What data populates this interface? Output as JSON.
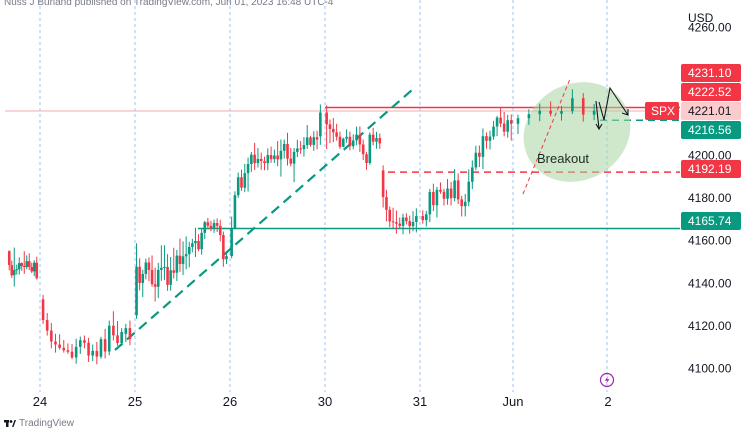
{
  "publisher_text": "Nuss J Burland published on TradingView.com, Jun 01, 2023 16:48 UTC-4",
  "footer_logo_text": "TradingView",
  "chart_data": {
    "type": "candlestick",
    "symbol": "SPX",
    "currency_label": "USD",
    "y_ticks": [
      4100,
      4120,
      4140,
      4160,
      4180,
      4200,
      4260
    ],
    "y_tick_labels": [
      "4100.00",
      "4120.00",
      "4140.00",
      "4160.00",
      "4180.00",
      "4200.00",
      "4260.00"
    ],
    "ylim": [
      4089,
      4273
    ],
    "x_labels": [
      "24",
      "25",
      "26",
      "30",
      "31",
      "Jun",
      "2"
    ],
    "price_badges": [
      {
        "label": "4231.10",
        "value": 4231.1,
        "style": "red"
      },
      {
        "label": "4222.52",
        "value": 4222.52,
        "style": "red"
      },
      {
        "label": "4221.01",
        "value": 4221.01,
        "style": "pink",
        "symbol": "SPX"
      },
      {
        "label": "4216.56",
        "value": 4216.56,
        "style": "green"
      },
      {
        "label": "4192.19",
        "value": 4192.19,
        "style": "red"
      },
      {
        "label": "4165.74",
        "value": 4165.74,
        "style": "green"
      }
    ],
    "horizontal_levels": [
      {
        "value": 4222.52,
        "style": "solid",
        "color": "#f23645"
      },
      {
        "value": 4192.19,
        "style": "dashed",
        "color": "#f23645"
      },
      {
        "value": 4216.56,
        "style": "dashed",
        "color": "#089981"
      },
      {
        "value": 4165.74,
        "style": "solid",
        "color": "#089981"
      }
    ],
    "trendline": {
      "style": "dashed",
      "color": "#089981"
    },
    "annotation": "Breakout",
    "candles": [
      [
        4155.1,
        4155.5,
        4146.1,
        4148.6
      ],
      [
        4148.6,
        4150.7,
        4142.6,
        4143.8
      ],
      [
        4143.8,
        4156.8,
        4138.5,
        4146.3
      ],
      [
        4146.3,
        4148.8,
        4144.1,
        4146.6
      ],
      [
        4146.6,
        4152.2,
        4144.1,
        4149.5
      ],
      [
        4149.5,
        4149.9,
        4145.9,
        4148.1
      ],
      [
        4148.1,
        4155.1,
        4144.4,
        4147.7
      ],
      [
        4147.7,
        4153.1,
        4146.6,
        4150.4
      ],
      [
        4150.4,
        4154.1,
        4146.3,
        4147.7
      ],
      [
        4147.7,
        4149.7,
        4144.8,
        4145.6
      ],
      [
        4145.6,
        4150.9,
        4143.4,
        4149.7
      ],
      [
        4149.7,
        4152.5,
        4141.8,
        4142.4
      ],
      [
        4132.5,
        4134.6,
        4121.0,
        4122.8
      ],
      [
        4122.8,
        4126.1,
        4115.5,
        4117.8
      ],
      [
        4117.8,
        4121.4,
        4109.5,
        4112.7
      ],
      [
        4112.7,
        4116.3,
        4107.5,
        4111.3
      ],
      [
        4111.3,
        4116.1,
        4108.9,
        4109.7
      ],
      [
        4109.7,
        4113.4,
        4107.5,
        4108.6
      ],
      [
        4108.6,
        4111.8,
        4106.9,
        4107.9
      ],
      [
        4107.9,
        4111.5,
        4104.4,
        4105.2
      ],
      [
        4105.2,
        4114.0,
        4102.3,
        4110.2
      ],
      [
        4110.2,
        4115.0,
        4106.9,
        4113.3
      ],
      [
        4113.3,
        4115.5,
        4109.5,
        4112.1
      ],
      [
        4112.1,
        4114.4,
        4103.1,
        4106.1
      ],
      [
        4106.1,
        4111.3,
        4103.5,
        4108.3
      ],
      [
        4108.3,
        4112.5,
        4102.0,
        4105.6
      ],
      [
        4105.6,
        4114.9,
        4104.6,
        4113.8
      ],
      [
        4113.8,
        4118.6,
        4104.8,
        4108.0
      ],
      [
        4108.0,
        4122.5,
        4106.2,
        4120.1
      ],
      [
        4120.1,
        4126.9,
        4113.2,
        4115.6
      ],
      [
        4115.6,
        4122.3,
        4110.7,
        4112.0
      ],
      [
        4112.0,
        4119.0,
        4110.6,
        4117.2
      ],
      [
        4116.3,
        4121.0,
        4112.5,
        4119.0
      ],
      [
        4119.0,
        4122.5,
        4111.0,
        4113.9
      ],
      [
        4125.0,
        4158.8,
        4123.4,
        4147.8
      ],
      [
        4147.8,
        4151.8,
        4136.7,
        4140.2
      ],
      [
        4140.2,
        4146.4,
        4133.6,
        4144.4
      ],
      [
        4144.4,
        4151.6,
        4141.9,
        4149.8
      ],
      [
        4149.8,
        4152.2,
        4141.0,
        4146.3
      ],
      [
        4146.3,
        4153.1,
        4138.4,
        4139.6
      ],
      [
        4139.6,
        4147.4,
        4131.5,
        4138.4
      ],
      [
        4138.4,
        4149.6,
        4133.1,
        4146.3
      ],
      [
        4146.3,
        4157.9,
        4141.2,
        4147.3
      ],
      [
        4147.3,
        4157.9,
        4141.5,
        4147.7
      ],
      [
        4147.7,
        4153.7,
        4136.5,
        4139.3
      ],
      [
        4139.3,
        4152.4,
        4136.6,
        4146.1
      ],
      [
        4146.1,
        4156.7,
        4142.3,
        4145.0
      ],
      [
        4145.0,
        4155.7,
        4141.1,
        4153.0
      ],
      [
        4153.0,
        4161.0,
        4145.4,
        4149.1
      ],
      [
        4149.1,
        4159.7,
        4143.9,
        4152.7
      ],
      [
        4152.7,
        4162.0,
        4146.6,
        4153.7
      ],
      [
        4153.7,
        4159.5,
        4147.5,
        4157.1
      ],
      [
        4157.1,
        4160.9,
        4154.6,
        4158.8
      ],
      [
        4158.8,
        4166.1,
        4152.4,
        4159.9
      ],
      [
        4159.9,
        4163.1,
        4155.1,
        4156.0
      ],
      [
        4156.0,
        4165.5,
        4153.4,
        4163.7
      ],
      [
        4163.7,
        4169.3,
        4160.8,
        4168.7
      ],
      [
        4168.7,
        4170.7,
        4165.4,
        4167.0
      ],
      [
        4167.0,
        4169.3,
        4164.5,
        4165.8
      ],
      [
        4165.8,
        4169.9,
        4163.7,
        4168.3
      ],
      [
        4168.3,
        4170.5,
        4164.1,
        4167.0
      ],
      [
        4167.0,
        4169.8,
        4159.7,
        4162.7
      ],
      [
        4162.7,
        4164.3,
        4147.8,
        4151.3
      ],
      [
        4151.3,
        4154.2,
        4149.1,
        4152.8
      ],
      [
        4152.8,
        4171.3,
        4151.8,
        4165.8
      ],
      [
        4165.8,
        4183.2,
        4165.8,
        4181.4
      ],
      [
        4181.4,
        4192.0,
        4180.1,
        4189.8
      ],
      [
        4189.8,
        4193.3,
        4183.4,
        4184.9
      ],
      [
        4184.9,
        4196.1,
        4182.8,
        4191.7
      ],
      [
        4191.7,
        4199.0,
        4183.1,
        4196.0
      ],
      [
        4196.0,
        4201.7,
        4192.3,
        4200.4
      ],
      [
        4200.4,
        4206.0,
        4193.2,
        4196.4
      ],
      [
        4196.4,
        4203.5,
        4194.4,
        4198.4
      ],
      [
        4198.4,
        4201.4,
        4193.3,
        4197.4
      ],
      [
        4197.4,
        4199.4,
        4193.1,
        4196.4
      ],
      [
        4196.4,
        4203.3,
        4193.1,
        4200.2
      ],
      [
        4200.2,
        4204.2,
        4196.6,
        4198.3
      ],
      [
        4198.3,
        4202.8,
        4196.5,
        4200.0
      ],
      [
        4200.0,
        4206.8,
        4195.0,
        4198.2
      ],
      [
        4198.2,
        4207.5,
        4190.1,
        4202.2
      ],
      [
        4202.2,
        4207.5,
        4198.6,
        4205.4
      ],
      [
        4205.4,
        4210.7,
        4195.3,
        4198.5
      ],
      [
        4198.5,
        4203.5,
        4194.9,
        4196.2
      ],
      [
        4196.2,
        4203.5,
        4187.5,
        4201.7
      ],
      [
        4201.7,
        4207.4,
        4199.3,
        4203.3
      ],
      [
        4203.3,
        4206.8,
        4200.8,
        4203.0
      ],
      [
        4203.0,
        4208.7,
        4199.5,
        4204.9
      ],
      [
        4204.9,
        4214.3,
        4203.1,
        4208.5
      ],
      [
        4208.5,
        4209.2,
        4204.2,
        4205.0
      ],
      [
        4205.0,
        4211.4,
        4202.2,
        4208.6
      ],
      [
        4208.6,
        4211.6,
        4202.9,
        4207.5
      ],
      [
        4209.0,
        4224.0,
        4205.0,
        4220.2
      ],
      [
        4220.2,
        4223.5,
        4203.0,
        4214.6
      ],
      [
        4214.6,
        4216.9,
        4205.8,
        4212.5
      ],
      [
        4212.5,
        4217.6,
        4206.3,
        4210.9
      ],
      [
        4210.9,
        4214.9,
        4207.0,
        4208.8
      ],
      [
        4208.8,
        4211.2,
        4203.1,
        4204.1
      ],
      [
        4204.1,
        4208.4,
        4203.9,
        4207.9
      ],
      [
        4207.9,
        4212.3,
        4206.0,
        4208.8
      ],
      [
        4208.8,
        4211.2,
        4202.4,
        4204.4
      ],
      [
        4204.4,
        4209.9,
        4202.9,
        4207.1
      ],
      [
        4207.1,
        4213.6,
        4204.9,
        4209.8
      ],
      [
        4209.8,
        4213.7,
        4201.7,
        4205.2
      ],
      [
        4205.2,
        4207.5,
        4197.9,
        4200.6
      ],
      [
        4200.6,
        4201.6,
        4193.3,
        4196.5
      ],
      [
        4196.5,
        4210.9,
        4195.7,
        4209.8
      ],
      [
        4209.8,
        4213.0,
        4204.8,
        4206.5
      ],
      [
        4206.5,
        4211.1,
        4203.2,
        4208.2
      ],
      [
        4208.2,
        4210.3,
        4203.1,
        4205.7
      ],
      [
        4193.0,
        4195.4,
        4175.6,
        4180.5
      ],
      [
        4180.5,
        4183.9,
        4169.1,
        4174.5
      ],
      [
        4174.5,
        4176.1,
        4166.4,
        4169.1
      ],
      [
        4169.1,
        4175.5,
        4165.9,
        4168.7
      ],
      [
        4168.7,
        4174.2,
        4163.3,
        4168.0
      ],
      [
        4168.0,
        4170.9,
        4165.7,
        4167.0
      ],
      [
        4167.0,
        4172.7,
        4163.0,
        4170.9
      ],
      [
        4170.9,
        4172.9,
        4167.6,
        4169.2
      ],
      [
        4169.2,
        4171.8,
        4163.3,
        4166.9
      ],
      [
        4166.9,
        4173.9,
        4164.4,
        4168.8
      ],
      [
        4168.8,
        4175.2,
        4163.9,
        4171.6
      ],
      [
        4171.6,
        4174.3,
        4168.0,
        4169.7
      ],
      [
        4169.7,
        4174.0,
        4166.7,
        4172.4
      ],
      [
        4172.4,
        4184.3,
        4168.7,
        4182.9
      ],
      [
        4182.9,
        4186.8,
        4173.9,
        4176.7
      ],
      [
        4176.7,
        4185.3,
        4170.9,
        4183.9
      ],
      [
        4183.9,
        4187.4,
        4182.0,
        4183.0
      ],
      [
        4183.0,
        4184.4,
        4176.5,
        4179.7
      ],
      [
        4179.7,
        4189.0,
        4176.9,
        4184.5
      ],
      [
        4184.5,
        4187.6,
        4176.6,
        4180.0
      ],
      [
        4180.0,
        4193.7,
        4178.5,
        4188.3
      ],
      [
        4188.3,
        4191.6,
        4177.2,
        4179.4
      ],
      [
        4179.4,
        4181.1,
        4171.4,
        4176.2
      ],
      [
        4176.2,
        4182.0,
        4171.4,
        4178.3
      ],
      [
        4178.3,
        4193.5,
        4176.2,
        4187.7
      ],
      [
        4187.7,
        4197.7,
        4184.2,
        4194.4
      ],
      [
        4194.4,
        4204.6,
        4193.1,
        4201.3
      ],
      [
        4201.3,
        4204.7,
        4194.6,
        4199.4
      ],
      [
        4199.4,
        4212.7,
        4193.6,
        4209.1
      ],
      [
        4209.1,
        4210.8,
        4203.2,
        4206.9
      ],
      [
        4206.9,
        4211.6,
        4202.8,
        4208.9
      ],
      [
        4208.9,
        4216.3,
        4207.4,
        4213.6
      ],
      [
        4213.6,
        4218.6,
        4209.1,
        4217.8
      ],
      [
        4217.8,
        4222.3,
        4213.3,
        4215.0
      ],
      [
        4215.0,
        4220.5,
        4209.0,
        4211.2
      ],
      [
        4211.2,
        4219.1,
        4208.4,
        4216.6
      ],
      [
        4216.6,
        4219.3,
        4207.0,
        4214.9
      ],
      [
        4214.9,
        4219.2,
        4210.1,
        4217.5
      ],
      [
        4217.5,
        4221.7,
        4214.4,
        4219.4
      ],
      [
        4219.4,
        4224.4,
        4216.1,
        4221.0
      ],
      [
        4221.0,
        4225.4,
        4218.4,
        4219.6
      ],
      [
        4219.6,
        4223.3,
        4216.4,
        4220.8
      ],
      [
        4220.8,
        4231.1,
        4219.5,
        4226.9
      ],
      [
        4226.9,
        4229.3,
        4215.9,
        4219.2
      ],
      [
        4219.2,
        4224.2,
        4216.6,
        4221.0
      ]
    ]
  }
}
